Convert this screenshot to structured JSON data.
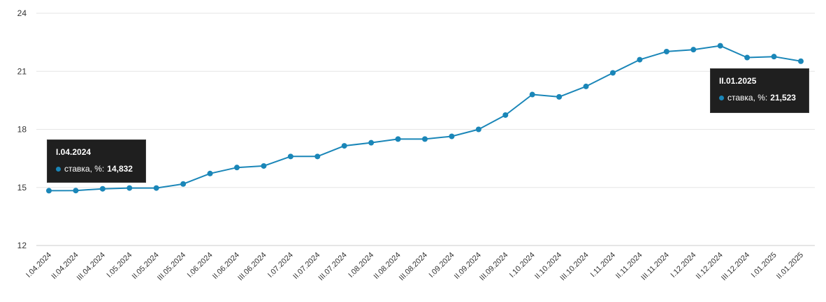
{
  "colors": {
    "series": "#1a86b8",
    "grid": "#e6e6e6",
    "axis": "#cccccc",
    "tooltip_bg": "#1f1f1f"
  },
  "chart_data": {
    "type": "line",
    "title": "",
    "xlabel": "",
    "ylabel": "",
    "ylim": [
      12,
      24
    ],
    "yticks": [
      12,
      15,
      18,
      21,
      24
    ],
    "grid": true,
    "categories": [
      "I.04.2024",
      "II.04.2024",
      "III.04.2024",
      "I.05.2024",
      "II.05.2024",
      "III.05.2024",
      "I.06.2024",
      "II.06.2024",
      "III.06.2024",
      "I.07.2024",
      "II.07.2024",
      "III.07.2024",
      "I.08.2024",
      "II.08.2024",
      "III.08.2024",
      "I.09.2024",
      "II.09.2024",
      "III.09.2024",
      "I.10.2024",
      "II.10.2024",
      "III.10.2024",
      "I.11.2024",
      "II.11.2024",
      "III.11.2024",
      "I.12.2024",
      "II.12.2024",
      "III.12.2024",
      "I.01.2025",
      "II.01.2025"
    ],
    "series": [
      {
        "name": "ставка, %",
        "values": [
          14.832,
          14.84,
          14.93,
          14.97,
          14.97,
          15.18,
          15.72,
          16.03,
          16.11,
          16.6,
          16.6,
          17.15,
          17.31,
          17.5,
          17.5,
          17.64,
          18.0,
          18.74,
          19.8,
          19.68,
          20.22,
          20.92,
          21.6,
          22.02,
          22.12,
          22.32,
          21.71,
          21.76,
          21.523
        ]
      }
    ]
  },
  "tooltips": [
    {
      "date": "I.04.2024",
      "label": "ставка, %:",
      "value": "14,832"
    },
    {
      "date": "II.01.2025",
      "label": "ставка, %:",
      "value": "21,523"
    }
  ]
}
